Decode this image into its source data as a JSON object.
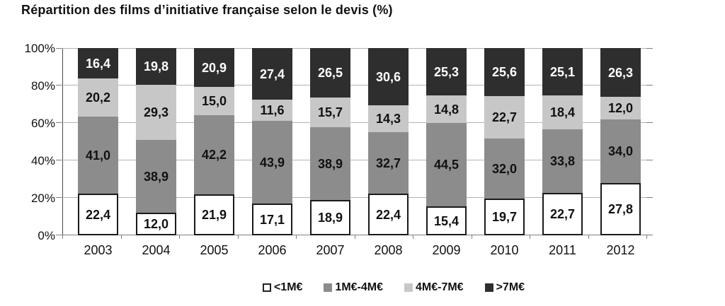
{
  "chart_data": {
    "type": "bar",
    "stacked": true,
    "title": "Répartition des films d’initiative française selon le devis (%)",
    "categories": [
      "2003",
      "2004",
      "2005",
      "2006",
      "2007",
      "2008",
      "2009",
      "2010",
      "2011",
      "2012"
    ],
    "series": [
      {
        "name": "<1M€",
        "color": "#ffffff",
        "text_color": "#111111",
        "bordered": true,
        "values": [
          22.4,
          12.0,
          21.9,
          17.1,
          18.9,
          22.4,
          15.4,
          19.7,
          22.7,
          27.8
        ],
        "labels": [
          "22,4",
          "12,0",
          "21,9",
          "17,1",
          "18,9",
          "22,4",
          "15,4",
          "19,7",
          "22,7",
          "27,8"
        ]
      },
      {
        "name": "1M€-4M€",
        "color": "#8c8c8c",
        "text_color": "#111111",
        "bordered": false,
        "values": [
          41.0,
          38.9,
          42.2,
          43.9,
          38.9,
          32.7,
          44.5,
          32.0,
          33.8,
          34.0
        ],
        "labels": [
          "41,0",
          "38,9",
          "42,2",
          "43,9",
          "38,9",
          "32,7",
          "44,5",
          "32,0",
          "33,8",
          "34,0"
        ]
      },
      {
        "name": "4M€-7M€",
        "color": "#c7c7c7",
        "text_color": "#111111",
        "bordered": false,
        "values": [
          20.2,
          29.3,
          15.0,
          11.6,
          15.7,
          14.3,
          14.8,
          22.7,
          18.4,
          12.0
        ],
        "labels": [
          "20,2",
          "29,3",
          "15,0",
          "11,6",
          "15,7",
          "14,3",
          "14,8",
          "22,7",
          "18,4",
          "12,0"
        ]
      },
      {
        "name": ">7M€",
        "color": "#2e2e2e",
        "text_color": "#ffffff",
        "bordered": false,
        "values": [
          16.4,
          19.8,
          20.9,
          27.4,
          26.5,
          30.6,
          25.3,
          25.6,
          25.1,
          26.3
        ],
        "labels": [
          "16,4",
          "19,8",
          "20,9",
          "27,4",
          "26,5",
          "30,6",
          "25,3",
          "25,6",
          "25,1",
          "26,3"
        ]
      }
    ],
    "yticks": [
      0,
      20,
      40,
      60,
      80,
      100
    ],
    "ytick_labels": [
      "0%",
      "20%",
      "40%",
      "60%",
      "80%",
      "100%"
    ],
    "ylim": [
      0,
      100
    ],
    "grid": true,
    "legend_position": "bottom"
  },
  "style_colors": {
    "gridline": "#b3b3b3",
    "axis": "#808080",
    "bar_border": "#1a1a1a"
  }
}
